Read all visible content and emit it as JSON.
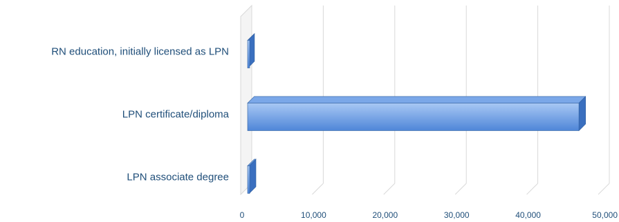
{
  "chart_data": {
    "type": "bar",
    "orientation": "horizontal",
    "style": "3d",
    "categories": [
      "RN education, initially licensed as LPN",
      "LPN certificate/diploma",
      "LPN associate degree"
    ],
    "values": [
      1000,
      47300,
      1200
    ],
    "xlim": [
      0,
      50000
    ],
    "x_ticks": [
      0,
      10000,
      20000,
      30000,
      40000,
      50000
    ],
    "x_tick_labels": [
      "0",
      "10,000",
      "20,000",
      "30,000",
      "40,000",
      "50,000"
    ],
    "title": "",
    "xlabel": "",
    "ylabel": "",
    "grid": true,
    "legend": "none",
    "colors": {
      "bar_front_top": "#a8c8f4",
      "bar_front_bottom": "#4f86d8",
      "bar_top_face": "#7aa7e8",
      "bar_side_face": "#3a6fbf",
      "bar_edge": "#2f5f9e",
      "label_text": "#1f4e79",
      "grid_line": "#d9d9d9"
    }
  }
}
